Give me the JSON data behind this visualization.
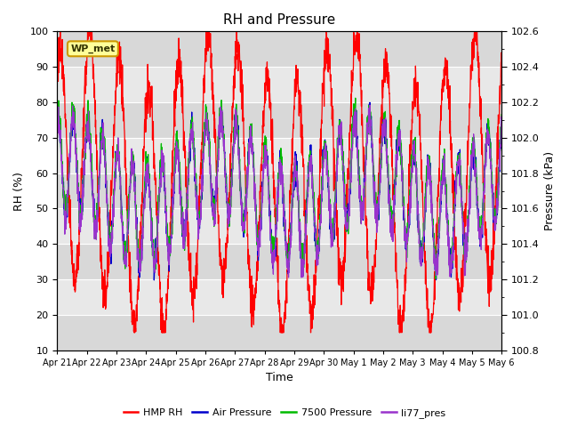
{
  "title": "RH and Pressure",
  "xlabel": "Time",
  "ylabel_left": "RH (%)",
  "ylabel_right": "Pressure (kPa)",
  "ylim_left": [
    10,
    100
  ],
  "ylim_right": [
    100.8,
    102.6
  ],
  "site_label": "WP_met",
  "legend_labels": [
    "HMP RH",
    "Air Pressure",
    "7500 Pressure",
    "li77_pres"
  ],
  "legend_colors": [
    "#ff0000",
    "#0000cc",
    "#00bb00",
    "#9933cc"
  ],
  "xtick_labels": [
    "Apr 21",
    "Apr 22",
    "Apr 23",
    "Apr 24",
    "Apr 25",
    "Apr 26",
    "Apr 27",
    "Apr 28",
    "Apr 29",
    "Apr 30",
    "May 1",
    "May 2",
    "May 3",
    "May 4",
    "May 5",
    "May 6"
  ],
  "n_days": 15,
  "pts_per_day": 144,
  "background_color": "#ffffff",
  "band_light": "#e8e8e8",
  "band_dark": "#d8d8d8",
  "title_fontsize": 11,
  "axis_fontsize": 9,
  "tick_fontsize": 8
}
